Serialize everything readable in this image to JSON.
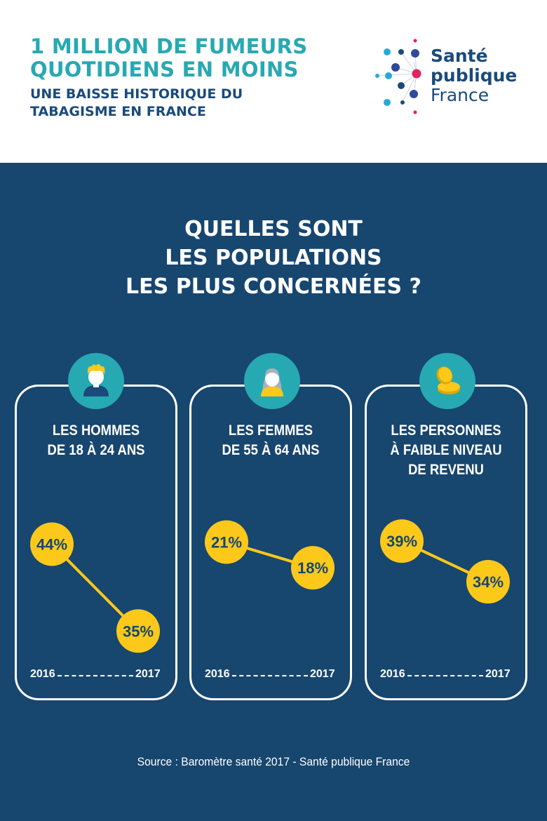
{
  "header": {
    "title_line1": "1 MILLION DE FUMEURS",
    "title_line2": "QUOTIDIENS EN MOINS",
    "subtitle_line1": "UNE BAISSE HISTORIQUE DU",
    "subtitle_line2": "TABAGISME EN FRANCE"
  },
  "logo": {
    "line1": "Santé",
    "line2": "publique",
    "line3": "France"
  },
  "question": {
    "line1": "QUELLES SONT",
    "line2": "LES POPULATIONS",
    "line3": "LES PLUS CONCERNÉES ?"
  },
  "colors": {
    "accent_teal": "#27a9b3",
    "navy": "#17466f",
    "yellow": "#fcc91b",
    "logo_red": "#e0245e",
    "logo_blue": "#1a4a7a"
  },
  "chart_data": [
    {
      "type": "line",
      "icon": "young-man-icon",
      "title_lines": [
        "LES HOMMES",
        "DE 18 À 24 ANS"
      ],
      "x": [
        "2016",
        "2017"
      ],
      "values": [
        44,
        35
      ],
      "labels": [
        "44%",
        "35%"
      ],
      "ylim": [
        30,
        46
      ]
    },
    {
      "type": "line",
      "icon": "woman-icon",
      "title_lines": [
        "LES FEMMES",
        "DE 55 À 64 ANS"
      ],
      "x": [
        "2016",
        "2017"
      ],
      "values": [
        21,
        18
      ],
      "labels": [
        "21%",
        "18%"
      ],
      "ylim": [
        5,
        23
      ]
    },
    {
      "type": "line",
      "icon": "coins-icon",
      "title_lines": [
        "LES PERSONNES",
        "À FAIBLE NIVEAU",
        "DE REVENU"
      ],
      "x": [
        "2016",
        "2017"
      ],
      "values": [
        39,
        34
      ],
      "labels": [
        "39%",
        "34%"
      ],
      "ylim": [
        22,
        41
      ]
    }
  ],
  "source": "Source : Baromètre santé 2017 - Santé publique France"
}
